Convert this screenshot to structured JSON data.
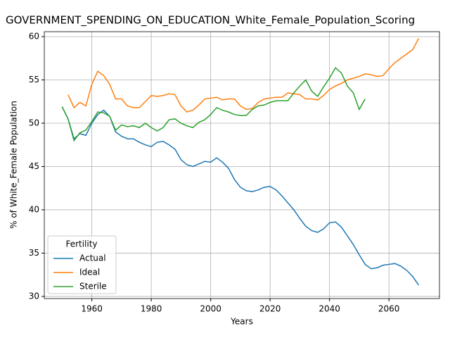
{
  "chart_data": {
    "type": "line",
    "title": "GOVERNMENT_SPENDING_ON_EDUCATION_White_Female_Population_Scoring",
    "x_label": "Years",
    "y_label": "% of White_Female Population",
    "x": [
      1950,
      1952,
      1954,
      1956,
      1958,
      1960,
      1962,
      1964,
      1966,
      1968,
      1970,
      1972,
      1974,
      1976,
      1978,
      1980,
      1982,
      1984,
      1986,
      1988,
      1990,
      1992,
      1994,
      1996,
      1998,
      2000,
      2002,
      2004,
      2006,
      2008,
      2010,
      2012,
      2014,
      2016,
      2018,
      2020,
      2022,
      2024,
      2026,
      2028,
      2030,
      2032,
      2034,
      2036,
      2038,
      2040,
      2042,
      2044,
      2046,
      2048,
      2050,
      2052,
      2054,
      2056,
      2058,
      2060,
      2062,
      2064,
      2066,
      2068,
      2070
    ],
    "series": [
      {
        "name": "Actual",
        "color": "#1f77b4",
        "values": [
          51.9,
          50.5,
          48.2,
          48.8,
          48.6,
          50.0,
          51.0,
          51.5,
          50.8,
          49.0,
          48.5,
          48.2,
          48.2,
          47.8,
          47.5,
          47.3,
          47.8,
          47.9,
          47.5,
          47.0,
          45.8,
          45.2,
          45.0,
          45.3,
          45.6,
          45.5,
          46.0,
          45.5,
          44.8,
          43.5,
          42.6,
          42.2,
          42.1,
          42.3,
          42.6,
          42.7,
          42.3,
          41.6,
          40.8,
          40.0,
          39.0,
          38.1,
          37.6,
          37.4,
          37.8,
          38.5,
          38.6,
          38.0,
          37.0,
          36.0,
          34.8,
          33.7,
          33.2,
          33.3,
          33.6,
          33.7,
          33.8,
          33.5,
          33.0,
          32.3,
          31.3
        ]
      },
      {
        "name": "Ideal",
        "color": "#ff7f0e",
        "values": [
          null,
          53.3,
          51.8,
          52.4,
          52.0,
          54.5,
          56.0,
          55.5,
          54.5,
          52.8,
          52.8,
          52.0,
          51.8,
          51.8,
          52.5,
          53.2,
          53.1,
          53.2,
          53.4,
          53.3,
          52.0,
          51.3,
          51.5,
          52.1,
          52.8,
          52.9,
          53.0,
          52.7,
          52.8,
          52.8,
          52.0,
          51.6,
          51.7,
          52.4,
          52.8,
          52.9,
          53.0,
          53.0,
          53.5,
          53.4,
          53.3,
          52.8,
          52.8,
          52.7,
          53.2,
          53.9,
          54.3,
          54.6,
          55.0,
          55.2,
          55.4,
          55.7,
          55.6,
          55.4,
          55.5,
          56.3,
          57.0,
          57.5,
          58.0,
          58.5,
          59.8
        ]
      },
      {
        "name": "Sterile",
        "color": "#2ca02c",
        "values": [
          51.9,
          50.5,
          48.0,
          48.9,
          49.2,
          50.2,
          51.3,
          51.2,
          50.8,
          49.2,
          49.8,
          49.6,
          49.7,
          49.5,
          50.0,
          49.5,
          49.1,
          49.5,
          50.4,
          50.5,
          50.0,
          49.7,
          49.5,
          50.1,
          50.4,
          51.0,
          51.8,
          51.5,
          51.3,
          51.0,
          50.9,
          50.9,
          51.6,
          52.0,
          52.1,
          52.4,
          52.6,
          52.6,
          52.6,
          53.5,
          54.3,
          55.0,
          53.7,
          53.1,
          54.2,
          55.2,
          56.4,
          55.8,
          54.3,
          53.5,
          51.6,
          52.8,
          null,
          null,
          null,
          null,
          null,
          null,
          null,
          null,
          null
        ]
      }
    ],
    "xlim": [
      1944,
      2077
    ],
    "ylim": [
      29.75,
      60.57
    ],
    "xticks": [
      1960,
      1980,
      2000,
      2020,
      2040,
      2060
    ],
    "yticks": [
      30,
      35,
      40,
      45,
      50,
      55,
      60
    ],
    "grid": true,
    "legend_title": "Fertility",
    "legend_loc": "lower left"
  }
}
